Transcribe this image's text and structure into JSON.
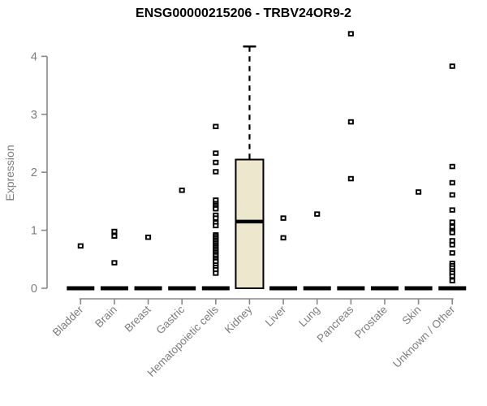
{
  "chart_data": {
    "type": "boxplot",
    "title": "ENSG00000215206 - TRBV24OR9-2",
    "ylabel": "Expression",
    "xlabel": "",
    "ylim": [
      0,
      4.4
    ],
    "yticks": [
      0,
      1,
      2,
      3,
      4
    ],
    "grid": false,
    "legend": null,
    "categories": [
      "Bladder",
      "Brain",
      "Breast",
      "Gastric",
      "Hematopoietic cells",
      "Kidney",
      "Liver",
      "Lung",
      "Pancreas",
      "Prostate",
      "Skin",
      "Unknown / Other"
    ],
    "boxes": [
      {
        "category": "Bladder",
        "min": 0,
        "q1": 0,
        "median": 0,
        "q3": 0,
        "max": 0,
        "outliers": [
          0.73
        ]
      },
      {
        "category": "Brain",
        "min": 0,
        "q1": 0,
        "median": 0,
        "q3": 0,
        "max": 0,
        "outliers": [
          0.98,
          0.9,
          0.44
        ]
      },
      {
        "category": "Breast",
        "min": 0,
        "q1": 0,
        "median": 0,
        "q3": 0,
        "max": 0,
        "outliers": [
          0.88
        ]
      },
      {
        "category": "Gastric",
        "min": 0,
        "q1": 0,
        "median": 0,
        "q3": 0,
        "max": 0,
        "outliers": [
          1.69
        ]
      },
      {
        "category": "Hematopoietic cells",
        "min": 0,
        "q1": 0,
        "median": 0,
        "q3": 0,
        "max": 0,
        "outliers": [
          2.79,
          2.33,
          2.17,
          2.01,
          1.52,
          1.46,
          1.43,
          1.4,
          1.37,
          1.26,
          1.21,
          1.13,
          1.08,
          0.92,
          0.89,
          0.86,
          0.83,
          0.8,
          0.77,
          0.74,
          0.71,
          0.68,
          0.65,
          0.62,
          0.59,
          0.56,
          0.52,
          0.49,
          0.46,
          0.4,
          0.36,
          0.32,
          0.26
        ]
      },
      {
        "category": "Kidney",
        "min": 0,
        "q1": 0,
        "median": 1.15,
        "q3": 2.22,
        "max": 4.17,
        "outliers": []
      },
      {
        "category": "Liver",
        "min": 0,
        "q1": 0,
        "median": 0,
        "q3": 0,
        "max": 0,
        "outliers": [
          1.21,
          0.87
        ]
      },
      {
        "category": "Lung",
        "min": 0,
        "q1": 0,
        "median": 0,
        "q3": 0,
        "max": 0,
        "outliers": [
          1.28
        ]
      },
      {
        "category": "Pancreas",
        "min": 0,
        "q1": 0,
        "median": 0,
        "q3": 0,
        "max": 0,
        "outliers": [
          4.39,
          2.87,
          1.89
        ]
      },
      {
        "category": "Prostate",
        "min": 0,
        "q1": 0,
        "median": 0,
        "q3": 0,
        "max": 0,
        "outliers": []
      },
      {
        "category": "Skin",
        "min": 0,
        "q1": 0,
        "median": 0,
        "q3": 0,
        "max": 0,
        "outliers": [
          1.66
        ]
      },
      {
        "category": "Unknown / Other",
        "min": 0,
        "q1": 0,
        "median": 0,
        "q3": 0,
        "max": 0,
        "outliers": [
          3.83,
          2.1,
          1.82,
          1.61,
          1.35,
          1.14,
          1.06,
          0.99,
          0.96,
          0.82,
          0.75,
          0.61,
          0.43,
          0.39,
          0.35,
          0.3,
          0.26,
          0.21,
          0.13
        ]
      }
    ],
    "colors": {
      "box_fill": "#ECE7CD",
      "box_border": "#000000",
      "median": "#000000",
      "outlier": "#000000",
      "axis_line": "#888888",
      "tick_label": "#7d7d7d",
      "title": "#000000",
      "background": "#ffffff"
    }
  }
}
